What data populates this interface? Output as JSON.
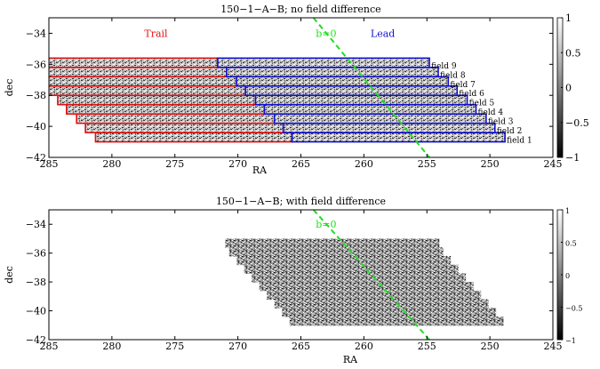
{
  "chart_data": [
    {
      "type": "heatmap",
      "title": "150−1−A−B; no field difference",
      "xlabel": "RA",
      "ylabel": "dec",
      "xlim": [
        285,
        245
      ],
      "ylim": [
        -42,
        -33
      ],
      "x_reversed": true,
      "xticks": [
        285,
        280,
        275,
        270,
        265,
        260,
        255,
        250,
        245
      ],
      "yticks": [
        -34,
        -36,
        -38,
        -40,
        -42
      ],
      "colorbar": {
        "range": [
          -1,
          1
        ],
        "ticks": [
          1,
          0.5,
          0,
          -0.5,
          -1
        ],
        "tick_labels": [
          "1",
          "0.5",
          "0",
          "−0.5",
          "−1"
        ]
      },
      "region_labels": [
        {
          "text": "Trail",
          "ra": 276.5,
          "dec": -34.0,
          "color": "#e01010"
        },
        {
          "text": "Lead",
          "ra": 258.5,
          "dec": -34.0,
          "color": "#1010d0"
        }
      ],
      "b0_line": {
        "label": "b=0",
        "ra1": 264.0,
        "dec1": -33.0,
        "ra2": 254.8,
        "dec2": -42.0,
        "label_ra": 263.0,
        "label_dec": -34.0,
        "color": "#22dd22"
      },
      "fields": [
        {
          "name": "field 1",
          "ra_left": 281.3,
          "ra_mid": 265.7,
          "ra_right": 248.8,
          "dec_top": -40.4,
          "dec_bottom": -41.0
        },
        {
          "name": "field 2",
          "ra_left": 282.1,
          "ra_mid": 266.4,
          "ra_right": 249.6,
          "dec_top": -39.8,
          "dec_bottom": -40.4
        },
        {
          "name": "field 3",
          "ra_left": 282.8,
          "ra_mid": 267.1,
          "ra_right": 250.3,
          "dec_top": -39.2,
          "dec_bottom": -39.8
        },
        {
          "name": "field 4",
          "ra_left": 283.6,
          "ra_mid": 267.9,
          "ra_right": 251.1,
          "dec_top": -38.6,
          "dec_bottom": -39.2
        },
        {
          "name": "field 5",
          "ra_left": 284.3,
          "ra_mid": 268.6,
          "ra_right": 251.8,
          "dec_top": -38.0,
          "dec_bottom": -38.6
        },
        {
          "name": "field 6",
          "ra_left": 285.1,
          "ra_mid": 269.4,
          "ra_right": 252.6,
          "dec_top": -37.4,
          "dec_bottom": -38.0
        },
        {
          "name": "field 7",
          "ra_left": 285.8,
          "ra_mid": 270.1,
          "ra_right": 253.3,
          "dec_top": -36.8,
          "dec_bottom": -37.4
        },
        {
          "name": "field 8",
          "ra_left": 286.6,
          "ra_mid": 270.9,
          "ra_right": 254.1,
          "dec_top": -36.2,
          "dec_bottom": -36.8
        },
        {
          "name": "field 9",
          "ra_left": 287.3,
          "ra_mid": 271.6,
          "ra_right": 254.8,
          "dec_top": -35.6,
          "dec_bottom": -36.2
        }
      ],
      "trail_color": "#e01010",
      "lead_color": "#1010d0"
    },
    {
      "type": "heatmap",
      "title": "150−1−A−B; with field difference",
      "xlabel": "RA",
      "ylabel": "dec",
      "xlim": [
        285,
        245
      ],
      "ylim": [
        -42,
        -33
      ],
      "x_reversed": true,
      "xticks": [
        285,
        280,
        275,
        270,
        265,
        260,
        255,
        250,
        245
      ],
      "yticks": [
        -34,
        -36,
        -38,
        -40,
        -42
      ],
      "colorbar": {
        "range": [
          -1,
          1
        ],
        "ticks": [
          1,
          0.5,
          0,
          -0.5,
          -1
        ],
        "tick_labels": [
          "1",
          "0.5",
          "0",
          "−0.5",
          "−1"
        ]
      },
      "b0_line": {
        "label": "b=0",
        "ra1": 264.0,
        "dec1": -33.0,
        "ra2": 254.8,
        "dec2": -42.0,
        "label_ra": 263.0,
        "label_dec": -34.0,
        "color": "#22dd22"
      },
      "strips": [
        {
          "ra_left": 265.9,
          "ra_right": 248.9,
          "dec_top": -40.4,
          "dec_bottom": -41.0
        },
        {
          "ra_left": 266.5,
          "ra_right": 249.5,
          "dec_top": -39.8,
          "dec_bottom": -40.4
        },
        {
          "ra_left": 267.1,
          "ra_right": 250.1,
          "dec_top": -39.2,
          "dec_bottom": -39.8
        },
        {
          "ra_left": 267.7,
          "ra_right": 250.7,
          "dec_top": -38.6,
          "dec_bottom": -39.2
        },
        {
          "ra_left": 268.3,
          "ra_right": 251.3,
          "dec_top": -38.0,
          "dec_bottom": -38.6
        },
        {
          "ra_left": 268.9,
          "ra_right": 251.9,
          "dec_top": -37.4,
          "dec_bottom": -38.0
        },
        {
          "ra_left": 269.5,
          "ra_right": 252.5,
          "dec_top": -36.8,
          "dec_bottom": -37.4
        },
        {
          "ra_left": 270.1,
          "ra_right": 253.1,
          "dec_top": -36.2,
          "dec_bottom": -36.8
        },
        {
          "ra_left": 270.7,
          "ra_right": 253.7,
          "dec_top": -35.6,
          "dec_bottom": -36.2
        },
        {
          "ra_left": 271.0,
          "ra_right": 254.0,
          "dec_top": -35.0,
          "dec_bottom": -35.6
        }
      ]
    }
  ]
}
